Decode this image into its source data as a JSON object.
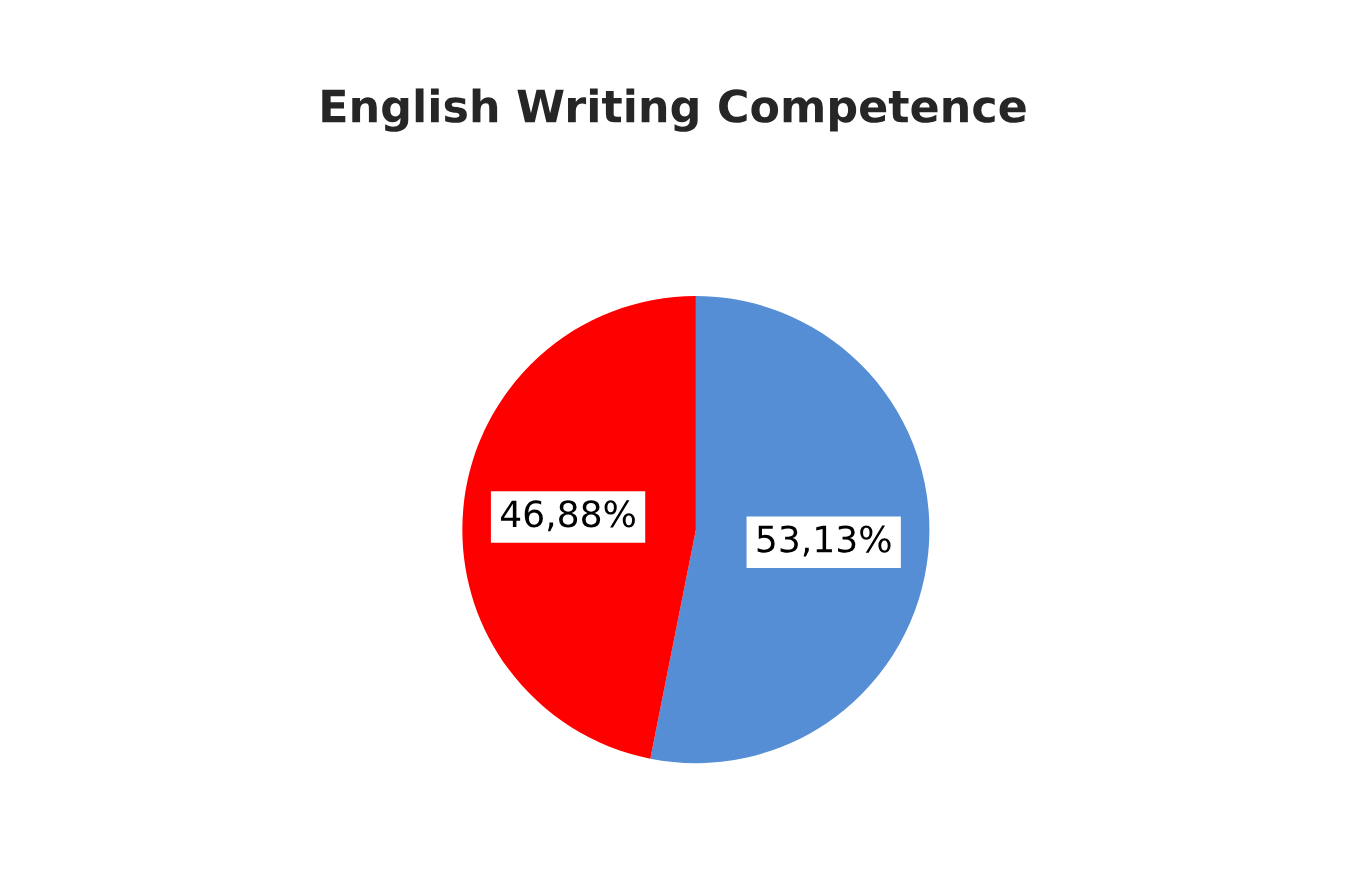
{
  "chart_data": {
    "type": "pie",
    "title": "English Writing Competence",
    "categories": [
      null,
      null
    ],
    "values": [
      53.13,
      46.88
    ],
    "colors": [
      "#558ed5",
      "#ff0000"
    ],
    "value_labels": [
      "53,13%",
      "46,88%"
    ]
  }
}
